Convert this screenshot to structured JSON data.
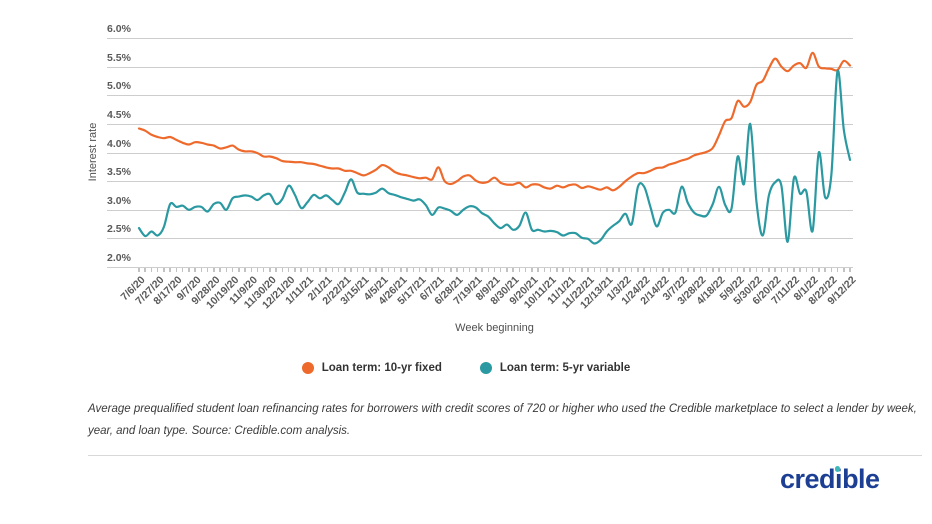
{
  "chart_data": {
    "type": "line",
    "ylabel": "Interest rate",
    "xlabel": "Week beginning",
    "ylim": [
      2.0,
      6.0
    ],
    "grid": "horizontal",
    "legend_position": "bottom-center",
    "y_ticks": [
      "6.0%",
      "5.5%",
      "5.0%",
      "4.5%",
      "4.0%",
      "3.5%",
      "3.0%",
      "2.5%",
      "2.0%"
    ],
    "x_tick_every": 3,
    "x_tick_labels": [
      "7/6/20",
      "7/27/20",
      "8/17/20",
      "9/7/20",
      "9/28/20",
      "10/19/20",
      "11/9/20",
      "11/30/20",
      "12/21/20",
      "1/11/21",
      "2/1/21",
      "2/22/21",
      "3/15/21",
      "4/5/21",
      "4/26/21",
      "5/17/21",
      "6/7/21",
      "6/28/21",
      "7/19/21",
      "8/9/21",
      "8/30/21",
      "9/20/21",
      "10/11/21",
      "11/1/21",
      "11/22/21",
      "12/13/21",
      "1/3/22",
      "1/24/22",
      "2/14/22",
      "3/7/22",
      "3/28/22",
      "4/18/22",
      "5/9/22",
      "5/30/22",
      "6/20/22",
      "7/11/22",
      "8/1/22",
      "8/22/22",
      "9/12/22"
    ],
    "series": [
      {
        "name": "Loan term: 10-yr fixed",
        "color": "#ee6a2c",
        "values": [
          4.42,
          4.38,
          4.31,
          4.27,
          4.25,
          4.27,
          4.22,
          4.17,
          4.14,
          4.18,
          4.17,
          4.14,
          4.12,
          4.07,
          4.09,
          4.12,
          4.05,
          4.02,
          4.02,
          3.99,
          3.93,
          3.93,
          3.9,
          3.85,
          3.84,
          3.83,
          3.83,
          3.81,
          3.8,
          3.77,
          3.74,
          3.72,
          3.72,
          3.68,
          3.68,
          3.64,
          3.6,
          3.64,
          3.7,
          3.78,
          3.74,
          3.66,
          3.62,
          3.6,
          3.57,
          3.55,
          3.56,
          3.53,
          3.74,
          3.5,
          3.45,
          3.5,
          3.58,
          3.6,
          3.51,
          3.47,
          3.49,
          3.56,
          3.47,
          3.44,
          3.44,
          3.47,
          3.39,
          3.44,
          3.44,
          3.39,
          3.37,
          3.42,
          3.39,
          3.43,
          3.44,
          3.38,
          3.41,
          3.38,
          3.35,
          3.39,
          3.34,
          3.4,
          3.5,
          3.58,
          3.64,
          3.64,
          3.68,
          3.73,
          3.74,
          3.79,
          3.82,
          3.86,
          3.89,
          3.95,
          3.98,
          4.01,
          4.08,
          4.3,
          4.55,
          4.6,
          4.9,
          4.8,
          4.88,
          5.18,
          5.25,
          5.47,
          5.64,
          5.5,
          5.42,
          5.52,
          5.56,
          5.48,
          5.74,
          5.5,
          5.47,
          5.46,
          5.44,
          5.6,
          5.52
        ]
      },
      {
        "name": "Loan term: 5-yr variable",
        "color": "#2b99a1",
        "values": [
          2.68,
          2.54,
          2.62,
          2.55,
          2.7,
          3.1,
          3.05,
          3.07,
          3.0,
          3.05,
          3.05,
          2.97,
          3.1,
          3.12,
          3.0,
          3.2,
          3.23,
          3.25,
          3.23,
          3.17,
          3.25,
          3.27,
          3.1,
          3.19,
          3.42,
          3.26,
          3.03,
          3.13,
          3.26,
          3.2,
          3.25,
          3.17,
          3.1,
          3.3,
          3.53,
          3.3,
          3.28,
          3.27,
          3.3,
          3.37,
          3.29,
          3.26,
          3.22,
          3.19,
          3.16,
          3.18,
          3.08,
          2.91,
          3.04,
          3.02,
          2.98,
          2.91,
          3.0,
          3.06,
          3.04,
          2.94,
          2.88,
          2.76,
          2.68,
          2.74,
          2.65,
          2.72,
          2.95,
          2.65,
          2.65,
          2.62,
          2.63,
          2.61,
          2.55,
          2.59,
          2.59,
          2.51,
          2.49,
          2.41,
          2.47,
          2.62,
          2.72,
          2.8,
          2.93,
          2.75,
          3.4,
          3.4,
          3.05,
          2.71,
          2.95,
          3.0,
          2.95,
          3.4,
          3.12,
          2.95,
          2.9,
          2.9,
          3.1,
          3.4,
          3.08,
          3.02,
          3.93,
          3.45,
          4.5,
          3.15,
          2.55,
          3.25,
          3.48,
          3.42,
          2.44,
          3.55,
          3.28,
          3.32,
          2.63,
          4.0,
          3.22,
          3.6,
          5.42,
          4.4,
          3.87
        ]
      }
    ]
  },
  "caption": "Average prequalified student loan refinancing rates for borrowers with credit scores of 720 or higher who used the Credible marketplace to select a lender by week, year, and loan type. Source: Credible.com analysis.",
  "logo": {
    "text_pre": "cred",
    "text_i": "i",
    "text_post": "ble",
    "color": "#1c3f94",
    "dot_color": "#3cb8bc"
  }
}
